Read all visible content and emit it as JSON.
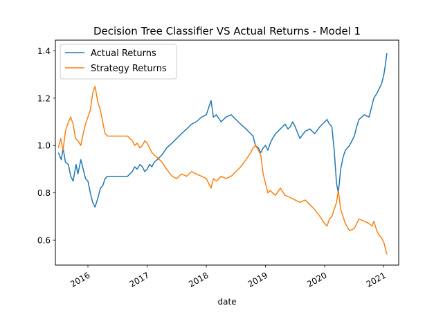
{
  "chart_data": {
    "type": "line",
    "title": "Decision Tree Classifier VS Actual Returns - Model 1",
    "xlabel": "date",
    "ylabel": "",
    "xlim": [
      2015.45,
      2021.25
    ],
    "ylim": [
      0.495,
      1.445
    ],
    "yticks": [
      0.6,
      0.8,
      1.0,
      1.2,
      1.4
    ],
    "ytick_labels": [
      "0.6",
      "0.8",
      "1.0",
      "1.2",
      "1.4"
    ],
    "xticks": [
      2016,
      2017,
      2018,
      2019,
      2020,
      2021
    ],
    "xtick_labels": [
      "2016",
      "2017",
      "2018",
      "2019",
      "2020",
      "2021"
    ],
    "grid": false,
    "legend_position": "top-left",
    "series": [
      {
        "name": "Actual Returns",
        "color": "#1f77b4",
        "points": [
          [
            2015.5,
            0.97
          ],
          [
            2015.55,
            0.94
          ],
          [
            2015.58,
            0.99
          ],
          [
            2015.62,
            0.93
          ],
          [
            2015.67,
            0.92
          ],
          [
            2015.71,
            0.87
          ],
          [
            2015.75,
            0.85
          ],
          [
            2015.8,
            0.92
          ],
          [
            2015.83,
            0.88
          ],
          [
            2015.88,
            0.94
          ],
          [
            2015.92,
            0.9
          ],
          [
            2015.96,
            0.86
          ],
          [
            2016.0,
            0.85
          ],
          [
            2016.04,
            0.8
          ],
          [
            2016.08,
            0.76
          ],
          [
            2016.12,
            0.74
          ],
          [
            2016.17,
            0.78
          ],
          [
            2016.21,
            0.82
          ],
          [
            2016.25,
            0.83
          ],
          [
            2016.29,
            0.86
          ],
          [
            2016.33,
            0.87
          ],
          [
            2016.67,
            0.87
          ],
          [
            2016.75,
            0.89
          ],
          [
            2016.79,
            0.91
          ],
          [
            2016.83,
            0.9
          ],
          [
            2016.88,
            0.92
          ],
          [
            2016.92,
            0.91
          ],
          [
            2016.96,
            0.89
          ],
          [
            2017.0,
            0.9
          ],
          [
            2017.04,
            0.92
          ],
          [
            2017.08,
            0.91
          ],
          [
            2017.12,
            0.93
          ],
          [
            2017.17,
            0.94
          ],
          [
            2017.21,
            0.95
          ],
          [
            2017.25,
            0.96
          ],
          [
            2017.33,
            0.99
          ],
          [
            2017.42,
            1.01
          ],
          [
            2017.5,
            1.03
          ],
          [
            2017.58,
            1.05
          ],
          [
            2017.67,
            1.07
          ],
          [
            2017.75,
            1.09
          ],
          [
            2017.83,
            1.1
          ],
          [
            2017.92,
            1.12
          ],
          [
            2018.0,
            1.13
          ],
          [
            2018.04,
            1.16
          ],
          [
            2018.08,
            1.19
          ],
          [
            2018.12,
            1.12
          ],
          [
            2018.17,
            1.13
          ],
          [
            2018.25,
            1.1
          ],
          [
            2018.33,
            1.12
          ],
          [
            2018.42,
            1.13
          ],
          [
            2018.5,
            1.11
          ],
          [
            2018.58,
            1.09
          ],
          [
            2018.67,
            1.07
          ],
          [
            2018.75,
            1.05
          ],
          [
            2018.79,
            1.04
          ],
          [
            2018.83,
            1.0
          ],
          [
            2018.88,
            0.99
          ],
          [
            2018.92,
            0.97
          ],
          [
            2018.96,
            0.99
          ],
          [
            2019.0,
            1.0
          ],
          [
            2019.04,
            0.98
          ],
          [
            2019.08,
            1.01
          ],
          [
            2019.12,
            1.03
          ],
          [
            2019.17,
            1.05
          ],
          [
            2019.25,
            1.07
          ],
          [
            2019.33,
            1.09
          ],
          [
            2019.38,
            1.07
          ],
          [
            2019.42,
            1.08
          ],
          [
            2019.46,
            1.1
          ],
          [
            2019.5,
            1.08
          ],
          [
            2019.58,
            1.03
          ],
          [
            2019.67,
            1.06
          ],
          [
            2019.75,
            1.07
          ],
          [
            2019.83,
            1.05
          ],
          [
            2019.92,
            1.08
          ],
          [
            2020.0,
            1.1
          ],
          [
            2020.04,
            1.11
          ],
          [
            2020.08,
            1.09
          ],
          [
            2020.12,
            1.08
          ],
          [
            2020.16,
            0.98
          ],
          [
            2020.2,
            0.84
          ],
          [
            2020.23,
            0.8
          ],
          [
            2020.27,
            0.9
          ],
          [
            2020.31,
            0.95
          ],
          [
            2020.35,
            0.98
          ],
          [
            2020.42,
            1.0
          ],
          [
            2020.5,
            1.04
          ],
          [
            2020.54,
            1.08
          ],
          [
            2020.58,
            1.11
          ],
          [
            2020.67,
            1.13
          ],
          [
            2020.75,
            1.12
          ],
          [
            2020.8,
            1.17
          ],
          [
            2020.83,
            1.2
          ],
          [
            2020.88,
            1.22
          ],
          [
            2020.92,
            1.24
          ],
          [
            2020.96,
            1.26
          ],
          [
            2021.0,
            1.3
          ],
          [
            2021.03,
            1.35
          ],
          [
            2021.05,
            1.39
          ]
        ]
      },
      {
        "name": "Strategy Returns",
        "color": "#ff7f0e",
        "points": [
          [
            2015.5,
            0.99
          ],
          [
            2015.54,
            1.03
          ],
          [
            2015.58,
            0.98
          ],
          [
            2015.62,
            1.06
          ],
          [
            2015.67,
            1.1
          ],
          [
            2015.71,
            1.12
          ],
          [
            2015.75,
            1.09
          ],
          [
            2015.79,
            1.03
          ],
          [
            2015.83,
            1.02
          ],
          [
            2015.88,
            1.0
          ],
          [
            2015.92,
            1.05
          ],
          [
            2015.96,
            1.09
          ],
          [
            2016.0,
            1.12
          ],
          [
            2016.04,
            1.15
          ],
          [
            2016.08,
            1.22
          ],
          [
            2016.12,
            1.25
          ],
          [
            2016.17,
            1.18
          ],
          [
            2016.21,
            1.15
          ],
          [
            2016.25,
            1.1
          ],
          [
            2016.29,
            1.05
          ],
          [
            2016.33,
            1.04
          ],
          [
            2016.67,
            1.04
          ],
          [
            2016.75,
            1.02
          ],
          [
            2016.79,
            1.0
          ],
          [
            2016.83,
            1.01
          ],
          [
            2016.88,
            0.99
          ],
          [
            2016.92,
            1.0
          ],
          [
            2016.96,
            1.02
          ],
          [
            2017.0,
            1.01
          ],
          [
            2017.04,
            0.99
          ],
          [
            2017.08,
            0.97
          ],
          [
            2017.12,
            0.96
          ],
          [
            2017.17,
            0.95
          ],
          [
            2017.25,
            0.93
          ],
          [
            2017.33,
            0.9
          ],
          [
            2017.42,
            0.87
          ],
          [
            2017.5,
            0.86
          ],
          [
            2017.58,
            0.88
          ],
          [
            2017.67,
            0.87
          ],
          [
            2017.75,
            0.89
          ],
          [
            2017.83,
            0.88
          ],
          [
            2017.92,
            0.87
          ],
          [
            2018.0,
            0.86
          ],
          [
            2018.04,
            0.84
          ],
          [
            2018.08,
            0.82
          ],
          [
            2018.12,
            0.86
          ],
          [
            2018.17,
            0.85
          ],
          [
            2018.25,
            0.87
          ],
          [
            2018.33,
            0.86
          ],
          [
            2018.42,
            0.87
          ],
          [
            2018.5,
            0.89
          ],
          [
            2018.58,
            0.91
          ],
          [
            2018.67,
            0.94
          ],
          [
            2018.75,
            0.97
          ],
          [
            2018.79,
            0.99
          ],
          [
            2018.83,
            1.0
          ],
          [
            2018.88,
            0.98
          ],
          [
            2018.92,
            0.96
          ],
          [
            2018.96,
            0.88
          ],
          [
            2019.0,
            0.84
          ],
          [
            2019.04,
            0.8
          ],
          [
            2019.08,
            0.81
          ],
          [
            2019.12,
            0.8
          ],
          [
            2019.17,
            0.79
          ],
          [
            2019.25,
            0.82
          ],
          [
            2019.33,
            0.79
          ],
          [
            2019.42,
            0.78
          ],
          [
            2019.5,
            0.77
          ],
          [
            2019.58,
            0.76
          ],
          [
            2019.67,
            0.77
          ],
          [
            2019.75,
            0.75
          ],
          [
            2019.83,
            0.73
          ],
          [
            2019.92,
            0.7
          ],
          [
            2020.0,
            0.67
          ],
          [
            2020.04,
            0.66
          ],
          [
            2020.08,
            0.69
          ],
          [
            2020.12,
            0.7
          ],
          [
            2020.16,
            0.73
          ],
          [
            2020.2,
            0.76
          ],
          [
            2020.23,
            0.81
          ],
          [
            2020.27,
            0.73
          ],
          [
            2020.31,
            0.7
          ],
          [
            2020.35,
            0.67
          ],
          [
            2020.42,
            0.64
          ],
          [
            2020.5,
            0.65
          ],
          [
            2020.54,
            0.67
          ],
          [
            2020.58,
            0.69
          ],
          [
            2020.67,
            0.68
          ],
          [
            2020.75,
            0.67
          ],
          [
            2020.8,
            0.66
          ],
          [
            2020.83,
            0.68
          ],
          [
            2020.88,
            0.64
          ],
          [
            2020.92,
            0.62
          ],
          [
            2020.96,
            0.61
          ],
          [
            2021.0,
            0.59
          ],
          [
            2021.03,
            0.56
          ],
          [
            2021.05,
            0.54
          ]
        ]
      }
    ]
  }
}
